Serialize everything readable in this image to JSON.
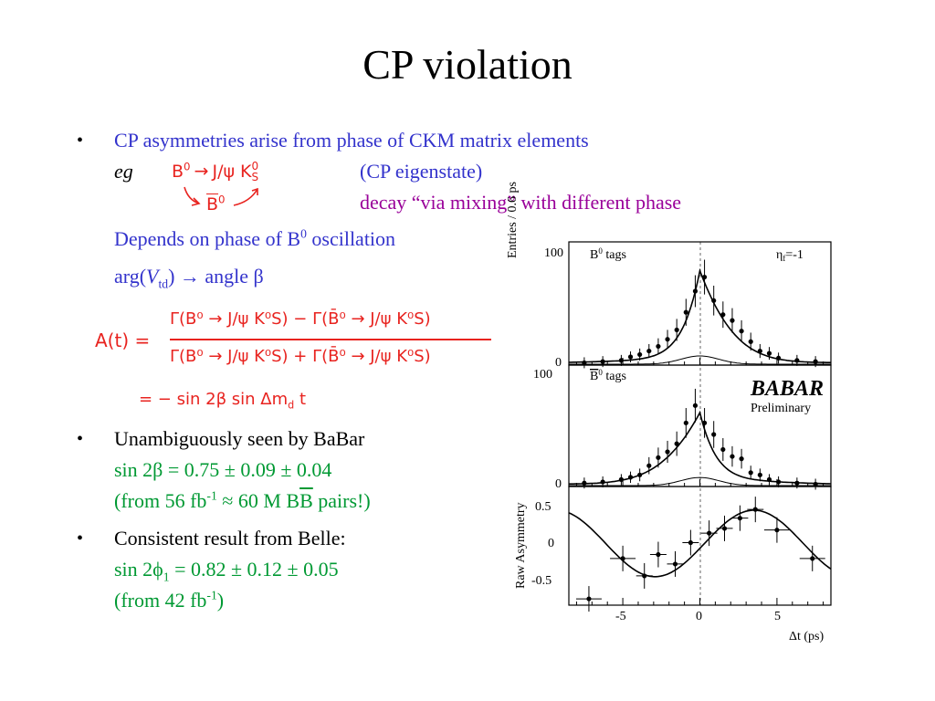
{
  "slide": {
    "title": "CP violation",
    "bullets": [
      {
        "marker": "•",
        "line1": "CP asymmetries arise from phase of CKM matrix elements",
        "eg": "eg",
        "decay_top": {
          "b0": "B",
          "sup": "0",
          "arrow": "→",
          "jpsi": "J/ψ K",
          "ks_sup": "0",
          "ks_sub": "S"
        },
        "decay_bottom": {
          "b0bar": "B",
          "sup": "0"
        },
        "note1": "(CP eigenstate)",
        "note2": "decay “via mixing” with different phase",
        "depends": {
          "pre": "Depends on phase of B",
          "sup": "0",
          "post": " oscillation"
        },
        "arg": {
          "pre": "arg(",
          "v": "V",
          "sub": "td",
          "post": ") → angle β"
        },
        "formula": {
          "lhs": "A(t)  =",
          "numerator": "Γ(B⁰ → J/ψ K⁰S) − Γ(B̄⁰ → J/ψ K⁰S)",
          "denominator": "Γ(B⁰ → J/ψ K⁰S) + Γ(B̄⁰ → J/ψ K⁰S)",
          "second": "=  − sin 2β  sin Δm",
          "second_sub": "d",
          "second_end": " t"
        }
      },
      {
        "marker": "•",
        "line1": "Unambiguously seen by BaBar",
        "line2": "sin 2β = 0.75 ± 0.09 ± 0.04",
        "line3": {
          "pre": "(from 56 fb",
          "sup": "-1",
          "mid": " ≈ 60 M B",
          "bbar": "B",
          "post": " pairs!)"
        }
      },
      {
        "marker": "•",
        "line1": "Consistent result from Belle:",
        "line2": {
          "pre": "sin 2ϕ",
          "sub": "1",
          "post": " = 0.82 ± 0.12 ± 0.05"
        },
        "line3": {
          "pre": "(from 42 fb",
          "sup": "-1",
          "post": ")"
        }
      }
    ]
  },
  "figure": {
    "panel1": {
      "label_pre": "B",
      "label_sup": "0",
      "label_post": " tags",
      "eta": "η",
      "eta_sub": "f",
      "eta_val": "=-1",
      "ylabel": "Entries / 0.6 ps",
      "yticks": [
        "100",
        "0"
      ]
    },
    "panel2": {
      "label_pre": "B",
      "label_sup": "0",
      "label_post": " tags",
      "ytick": "0",
      "ytick_top": "100",
      "logo": "BABAR",
      "logo_sub": "Preliminary"
    },
    "panel3": {
      "ylabel": "Raw Asymmetry",
      "yticks": [
        "0.5",
        "0",
        "-0.5"
      ],
      "xticks": [
        "-5",
        "0",
        "5"
      ],
      "xlabel": "Δt (ps)"
    }
  },
  "chart_data": [
    {
      "type": "scatter",
      "title": "B0 tags",
      "xlabel": "",
      "ylabel": "Entries / 0.6 ps",
      "xlim": [
        -8.5,
        8.5
      ],
      "ylim": [
        0,
        105
      ],
      "series": [
        {
          "name": "",
          "x": [
            -7.5,
            -6.3,
            -5.1,
            -4.5,
            -3.9,
            -3.3,
            -2.7,
            -2.1,
            -1.5,
            -0.9,
            -0.3,
            0.3,
            0.9,
            1.5,
            2.1,
            2.7,
            3.3,
            3.9,
            4.5,
            5.1,
            6.3,
            7.5
          ],
          "y": [
            2,
            3,
            4,
            7,
            9,
            12,
            16,
            22,
            30,
            45,
            63,
            75,
            55,
            43,
            38,
            29,
            20,
            12,
            10,
            6,
            4,
            3
          ]
        }
      ]
    },
    {
      "type": "scatter",
      "title": "B̄0 tags",
      "xlabel": "",
      "ylabel": "",
      "xlim": [
        -8.5,
        8.5
      ],
      "ylim": [
        0,
        105
      ],
      "series": [
        {
          "name": "",
          "x": [
            -7.5,
            -6.3,
            -5.1,
            -4.5,
            -3.9,
            -3.3,
            -2.7,
            -2.1,
            -1.5,
            -0.9,
            -0.3,
            0.3,
            0.9,
            1.5,
            2.1,
            2.7,
            3.3,
            3.9,
            4.5,
            5.1,
            6.3,
            7.5
          ],
          "y": [
            3,
            4,
            6,
            8,
            10,
            18,
            25,
            30,
            37,
            55,
            70,
            55,
            45,
            32,
            26,
            24,
            12,
            10,
            6,
            4,
            3,
            2
          ]
        }
      ]
    },
    {
      "type": "scatter",
      "title": "",
      "xlabel": "Δt (ps)",
      "ylabel": "Raw Asymmetry",
      "xlim": [
        -8.5,
        8.5
      ],
      "ylim": [
        -0.8,
        0.7
      ],
      "series": [
        {
          "name": "",
          "x": [
            -7.2,
            -5.0,
            -3.6,
            -2.7,
            -1.6,
            -0.6,
            0.6,
            1.6,
            2.6,
            3.6,
            5.0,
            7.3
          ],
          "y": [
            -0.72,
            -0.21,
            -0.43,
            -0.16,
            -0.28,
            -0.01,
            0.11,
            0.17,
            0.3,
            0.41,
            0.15,
            -0.21
          ]
        }
      ]
    }
  ]
}
